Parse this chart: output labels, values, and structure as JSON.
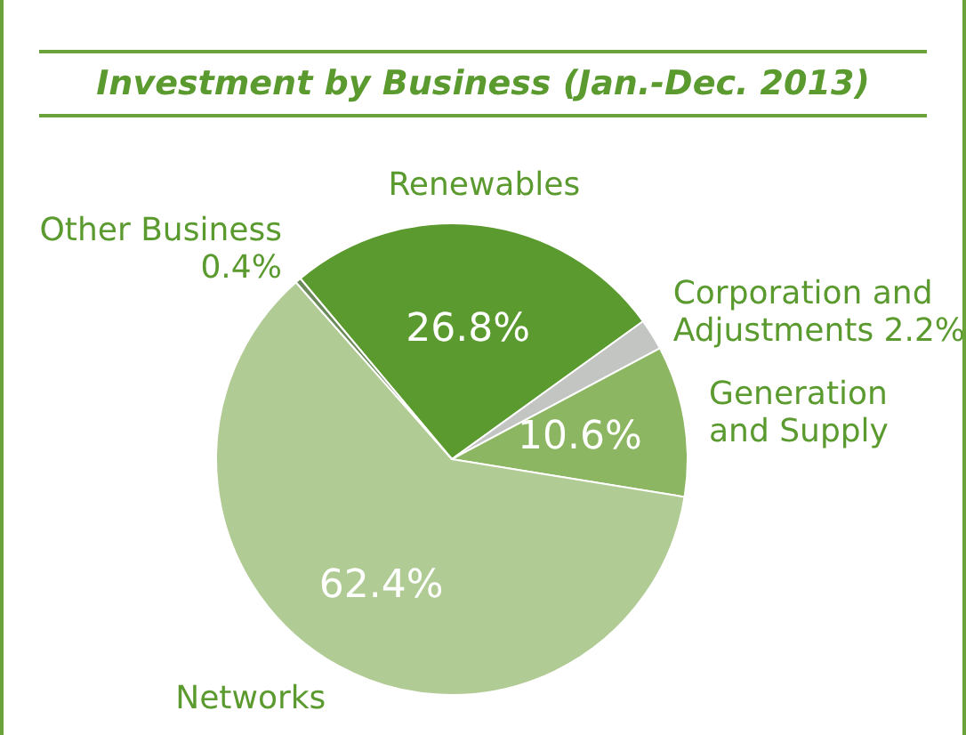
{
  "chart_data": {
    "type": "pie",
    "title": "Investment by Business (Jan.-Dec. 2013)",
    "categories": [
      "Renewables",
      "Corporation and Adjustments",
      "Generation and Supply",
      "Networks",
      "Other Business"
    ],
    "values": [
      26.8,
      2.2,
      10.6,
      62.4,
      0.4
    ],
    "value_labels": [
      "26.8%",
      "2.2%",
      "10.6%",
      "62.4%",
      "0.4%"
    ],
    "colors": [
      "#5b9a2f",
      "#c3c5c2",
      "#8cb662",
      "#b1cb95",
      "#6b8a5a"
    ],
    "legend": false
  }
}
